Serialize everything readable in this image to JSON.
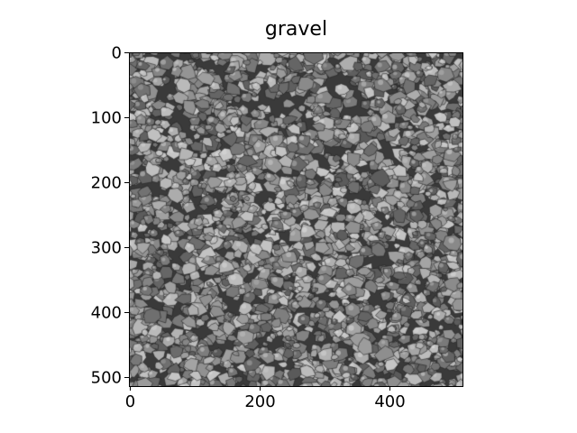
{
  "title": "gravel",
  "image": {
    "description_colormap": "gray",
    "width": 512,
    "height": 512
  },
  "x_ticks": [
    "0",
    "200",
    "400"
  ],
  "y_ticks": [
    "0",
    "100",
    "200",
    "300",
    "400",
    "500"
  ]
}
